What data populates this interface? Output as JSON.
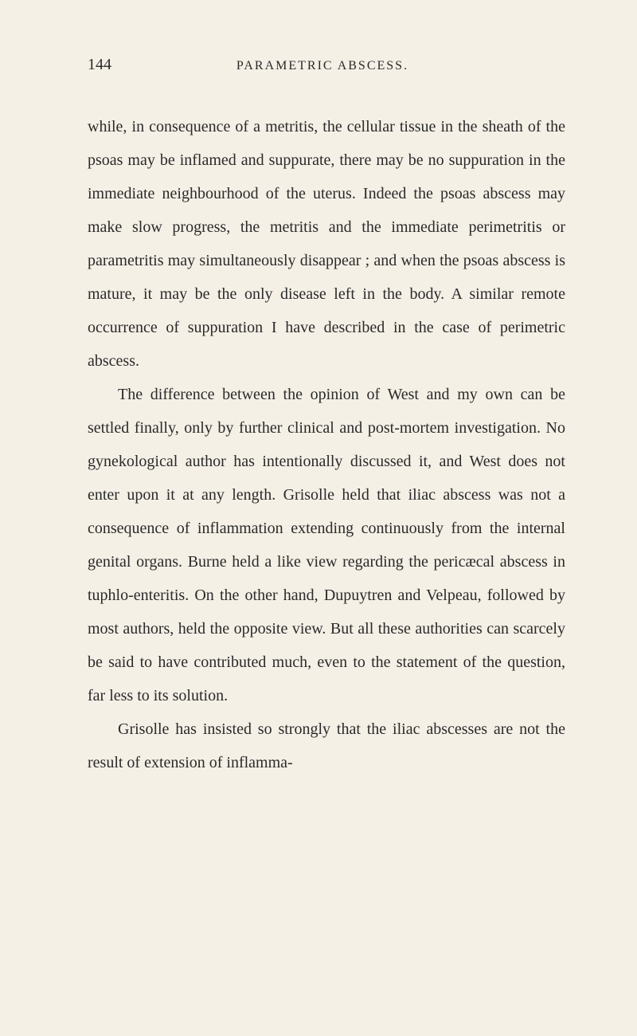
{
  "page": {
    "number": "144",
    "runningHead": "PARAMETRIC ABSCESS.",
    "background": "#f5f0e6",
    "textColor": "#2a2a2a",
    "bodyFontSize": 20,
    "lineHeight": 2.1
  },
  "paragraphs": {
    "p1": "while, in consequence of a metritis, the cellular tissue in the sheath of the psoas may be inflamed and suppurate, there may be no suppuration in the immediate neighbourhood of the uterus. Indeed the psoas abscess may make slow progress, the metritis and the immediate perimetritis or parametritis may simultaneously disappear ; and when the psoas abscess is mature, it may be the only disease left in the body. A similar remote occurrence of suppuration I have described in the case of perimetric abscess.",
    "p2": "The difference between the opinion of West and my own can be settled finally, only by further clinical and post-mortem investigation. No gynekological author has intentionally discussed it, and West does not enter upon it at any length. Grisolle held that iliac abscess was not a consequence of inflammation extending continuously from the internal genital organs. Burne held a like view regarding the pericæcal abscess in tuphlo-enteritis. On the other hand, Dupuytren and Velpeau, followed by most authors, held the opposite view. But all these authorities can scarcely be said to have contributed much, even to the statement of the question, far less to its solution.",
    "p3": "Grisolle has insisted so strongly that the iliac abscesses are not the result of extension of inflamma-"
  }
}
